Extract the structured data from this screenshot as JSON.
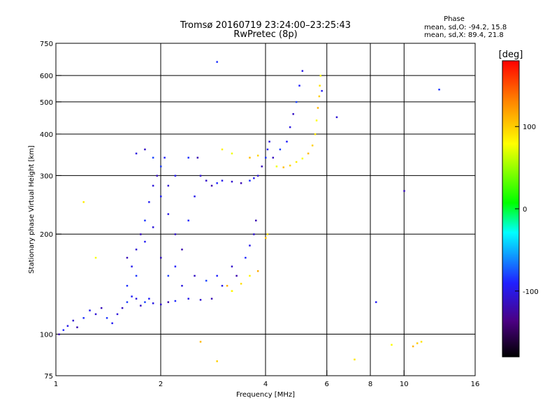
{
  "chart_data": {
    "type": "scatter",
    "title": "Tromsø 20160719 23:24:00–23:25:43",
    "subtitle": "RwPretec (8p)",
    "xlabel": "Frequency [MHz]",
    "ylabel": "Stationary phase Virtual Height [km]",
    "xscale": "log",
    "yscale": "log",
    "xlim": [
      1,
      16
    ],
    "ylim": [
      75,
      750
    ],
    "xticks": [
      "1",
      "2",
      "4",
      "6",
      "8",
      "10",
      "16"
    ],
    "xtick_values": [
      1,
      2,
      4,
      6,
      8,
      10,
      16
    ],
    "yticks": [
      "75",
      "100",
      "200",
      "300",
      "400",
      "500",
      "600",
      "750"
    ],
    "ytick_values": [
      75,
      100,
      200,
      300,
      400,
      500,
      600,
      750
    ],
    "x_grid": [
      2,
      4,
      6,
      8,
      10
    ],
    "y_grid": [
      100,
      200,
      300,
      400,
      500,
      600
    ],
    "grid": true,
    "phase_box": {
      "title": "Phase",
      "line_o": "mean, sd,O: -94.2, 15.8",
      "line_x": "mean, sd,X:  89.4, 21.8"
    },
    "colorbar": {
      "label": "[deg]",
      "ticks": [
        "100",
        "0",
        "-100"
      ],
      "tick_values": [
        100,
        0,
        -100
      ],
      "range": [
        -180,
        180
      ]
    },
    "series": [
      {
        "mode": "O",
        "points": [
          [
            1.02,
            100
          ],
          [
            1.05,
            103
          ],
          [
            1.08,
            106
          ],
          [
            1.12,
            110
          ],
          [
            1.15,
            105
          ],
          [
            1.2,
            112
          ],
          [
            1.25,
            118
          ],
          [
            1.3,
            115
          ],
          [
            1.35,
            120
          ],
          [
            1.4,
            112
          ],
          [
            1.45,
            108
          ],
          [
            1.5,
            115
          ],
          [
            1.55,
            120
          ],
          [
            1.6,
            125
          ],
          [
            1.65,
            130
          ],
          [
            1.7,
            128
          ],
          [
            1.75,
            122
          ],
          [
            1.8,
            125
          ],
          [
            1.85,
            128
          ],
          [
            1.9,
            124
          ],
          [
            2.0,
            123
          ],
          [
            2.1,
            125
          ],
          [
            2.2,
            126
          ],
          [
            2.4,
            128
          ],
          [
            2.6,
            127
          ],
          [
            2.8,
            128
          ],
          [
            1.6,
            140
          ],
          [
            1.65,
            160
          ],
          [
            1.7,
            180
          ],
          [
            1.75,
            200
          ],
          [
            1.8,
            220
          ],
          [
            1.85,
            250
          ],
          [
            1.9,
            280
          ],
          [
            1.95,
            300
          ],
          [
            2.0,
            320
          ],
          [
            2.05,
            340
          ],
          [
            1.7,
            350
          ],
          [
            1.8,
            360
          ],
          [
            1.9,
            340
          ],
          [
            2.0,
            260
          ],
          [
            2.1,
            230
          ],
          [
            2.2,
            200
          ],
          [
            2.3,
            180
          ],
          [
            2.4,
            220
          ],
          [
            2.5,
            260
          ],
          [
            2.6,
            300
          ],
          [
            2.55,
            340
          ],
          [
            2.4,
            340
          ],
          [
            2.2,
            300
          ],
          [
            2.1,
            280
          ],
          [
            1.6,
            170
          ],
          [
            1.7,
            150
          ],
          [
            1.8,
            190
          ],
          [
            1.9,
            210
          ],
          [
            2.0,
            170
          ],
          [
            2.1,
            150
          ],
          [
            2.2,
            160
          ],
          [
            2.3,
            140
          ],
          [
            2.5,
            150
          ],
          [
            2.7,
            145
          ],
          [
            2.9,
            150
          ],
          [
            3.0,
            140
          ],
          [
            2.7,
            290
          ],
          [
            2.8,
            280
          ],
          [
            2.9,
            285
          ],
          [
            3.0,
            290
          ],
          [
            3.2,
            288
          ],
          [
            3.4,
            285
          ],
          [
            3.6,
            290
          ],
          [
            3.7,
            295
          ],
          [
            3.8,
            300
          ],
          [
            3.9,
            320
          ],
          [
            4.0,
            340
          ],
          [
            4.05,
            360
          ],
          [
            4.1,
            380
          ],
          [
            4.2,
            340
          ],
          [
            4.4,
            360
          ],
          [
            4.6,
            380
          ],
          [
            4.7,
            420
          ],
          [
            4.8,
            460
          ],
          [
            4.9,
            500
          ],
          [
            5.0,
            560
          ],
          [
            5.1,
            620
          ],
          [
            3.2,
            160
          ],
          [
            3.3,
            150
          ],
          [
            3.5,
            170
          ],
          [
            3.6,
            185
          ],
          [
            3.7,
            200
          ],
          [
            3.75,
            220
          ],
          [
            2.9,
            660
          ],
          [
            5.8,
            540
          ],
          [
            6.4,
            450
          ],
          [
            10.0,
            270
          ],
          [
            12.6,
            545
          ],
          [
            8.3,
            125
          ]
        ]
      },
      {
        "mode": "X",
        "points": [
          [
            4.3,
            320
          ],
          [
            4.5,
            318
          ],
          [
            4.7,
            322
          ],
          [
            4.9,
            330
          ],
          [
            5.1,
            338
          ],
          [
            5.3,
            350
          ],
          [
            5.45,
            370
          ],
          [
            5.55,
            400
          ],
          [
            5.6,
            440
          ],
          [
            5.65,
            480
          ],
          [
            5.7,
            520
          ],
          [
            5.72,
            560
          ],
          [
            5.75,
            600
          ],
          [
            3.1,
            140
          ],
          [
            3.2,
            135
          ],
          [
            3.4,
            142
          ],
          [
            3.6,
            150
          ],
          [
            3.8,
            155
          ],
          [
            4.0,
            195
          ],
          [
            4.05,
            200
          ],
          [
            3.0,
            360
          ],
          [
            3.2,
            350
          ],
          [
            3.6,
            340
          ],
          [
            3.8,
            345
          ],
          [
            1.2,
            250
          ],
          [
            1.3,
            170
          ],
          [
            2.6,
            95
          ],
          [
            2.9,
            83
          ],
          [
            7.2,
            84
          ],
          [
            9.2,
            93
          ],
          [
            10.6,
            92
          ],
          [
            10.9,
            94
          ],
          [
            11.2,
            95
          ],
          [
            3.2,
            135
          ]
        ]
      }
    ]
  }
}
